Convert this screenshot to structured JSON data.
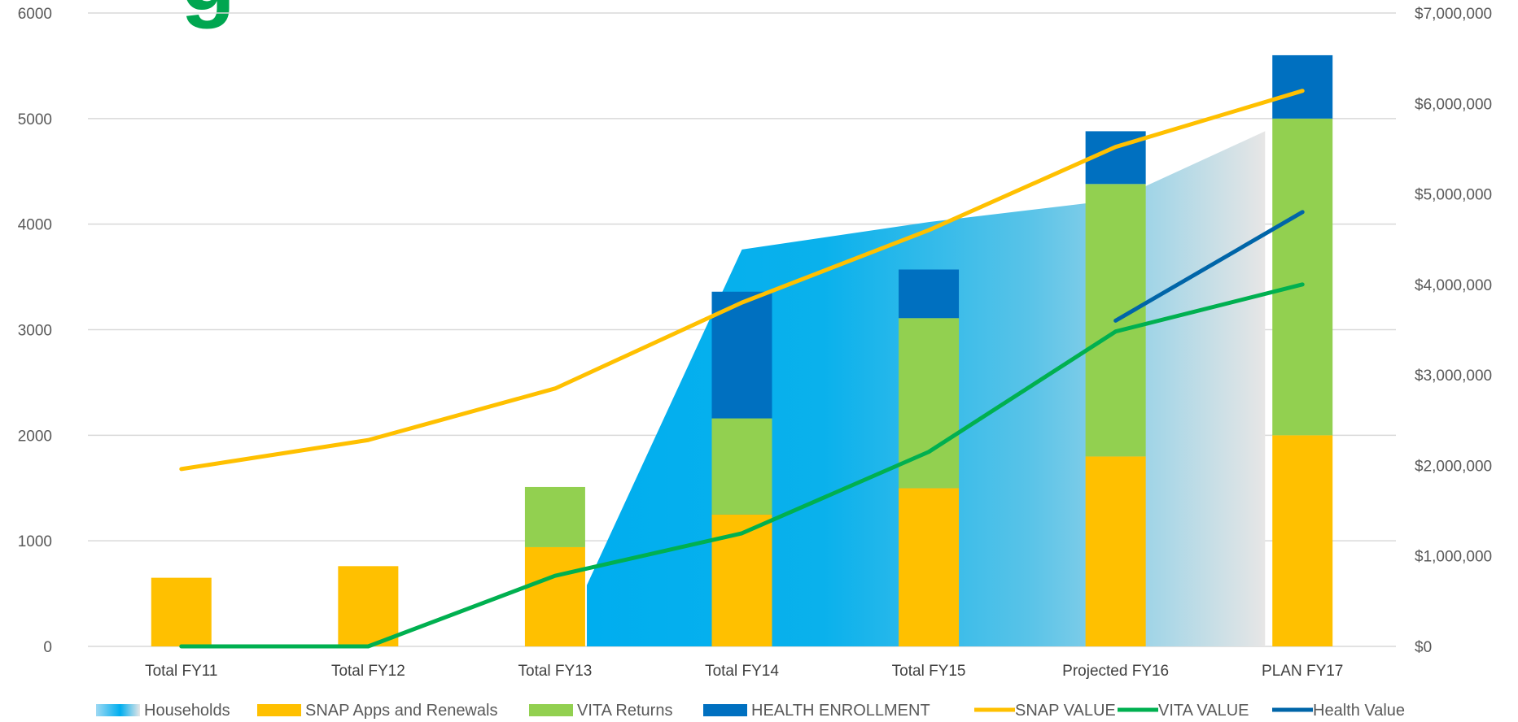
{
  "chart_data": {
    "type": "bar",
    "title_fragment": "g",
    "categories": [
      "Total FY11",
      "Total FY12",
      "Total FY13",
      "Total FY14",
      "Total FY15",
      "Projected FY16",
      "PLAN FY17"
    ],
    "y_left": {
      "min": 0,
      "max": 6000,
      "ticks": [
        0,
        1000,
        2000,
        3000,
        4000,
        5000,
        6000
      ],
      "tick_labels": [
        "0",
        "1000",
        "2000",
        "3000",
        "4000",
        "5000",
        "6000"
      ]
    },
    "y_right": {
      "min": 0,
      "max": 7000000,
      "ticks": [
        0,
        1000000,
        2000000,
        3000000,
        4000000,
        5000000,
        6000000,
        7000000
      ],
      "tick_labels": [
        "$0",
        "$1,000,000",
        "$2,000,000",
        "$3,000,000",
        "$4,000,000",
        "$5,000,000",
        "$6,000,000",
        "$7,000,000"
      ]
    },
    "grid": true,
    "legend_position": "bottom",
    "area_series": {
      "name": "Households",
      "points": [
        {
          "x": 2.17,
          "y": 580
        },
        {
          "x": 3.0,
          "y": 3760
        },
        {
          "x": 4.0,
          "y": 4020
        },
        {
          "x": 5.0,
          "y": 4230
        },
        {
          "x": 5.8,
          "y": 4880
        }
      ]
    },
    "stacked_series": [
      {
        "name": "SNAP Apps and Renewals",
        "color": "#ffc000",
        "values": [
          650,
          760,
          940,
          1250,
          1500,
          1800,
          2000
        ]
      },
      {
        "name": "VITA Returns",
        "color": "#92d050",
        "values": [
          0,
          0,
          570,
          910,
          1610,
          2580,
          3000
        ]
      },
      {
        "name": "HEALTH ENROLLMENT",
        "color": "#0070c0",
        "values": [
          0,
          0,
          0,
          1200,
          460,
          500,
          600
        ]
      }
    ],
    "line_series": [
      {
        "name": "SNAP VALUE",
        "color": "#ffc000",
        "axis": "right",
        "values": [
          1960000,
          2280000,
          2850000,
          3800000,
          4600000,
          5520000,
          6140000
        ]
      },
      {
        "name": "VITA VALUE",
        "color": "#00b050",
        "axis": "right",
        "values": [
          0,
          0,
          780000,
          1250000,
          2150000,
          3480000,
          4000000
        ]
      },
      {
        "name": "Health Value",
        "color": "#0065a8",
        "axis": "right",
        "values": [
          null,
          null,
          null,
          null,
          null,
          3600000,
          4800000
        ]
      }
    ]
  },
  "legend": [
    {
      "label": "Households",
      "kind": "gradient"
    },
    {
      "label": "SNAP Apps and Renewals",
      "kind": "rect",
      "color": "#ffc000"
    },
    {
      "label": "VITA Returns",
      "kind": "rect",
      "color": "#92d050"
    },
    {
      "label": "HEALTH ENROLLMENT",
      "kind": "rect",
      "color": "#0070c0"
    },
    {
      "label": "SNAP VALUE",
      "kind": "line",
      "color": "#ffc000"
    },
    {
      "label": "VITA VALUE",
      "kind": "line",
      "color": "#00b050"
    },
    {
      "label": "Health Value",
      "kind": "line",
      "color": "#0065a8"
    }
  ],
  "colors": {
    "grid": "#d9d9d9",
    "title_green": "#00a650",
    "gradient_start": "#00aeef",
    "gradient_end": "#e7e6e6"
  }
}
